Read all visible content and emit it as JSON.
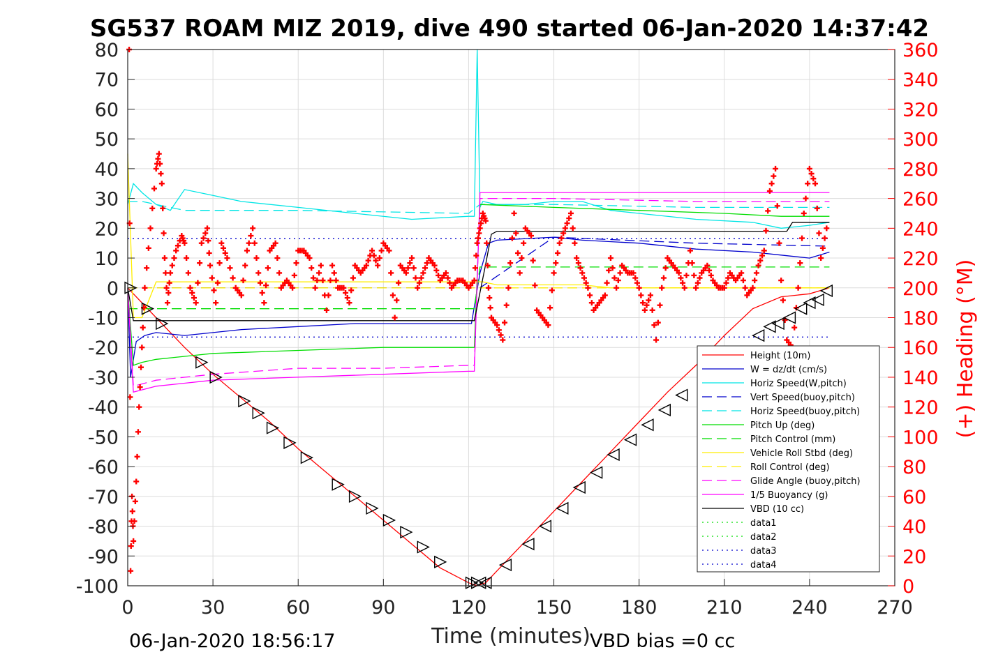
{
  "chart_data": {
    "type": "line",
    "title": "SG537 ROAM MIZ 2019, dive 490 started 06-Jan-2020 14:37:42",
    "xlabel": "Time (minutes)",
    "ylabel": "",
    "ylabel_right": "(+) Heading (°M)",
    "footer_left": "06-Jan-2020 18:56:17",
    "footer_right": "VBD bias =0 cc",
    "xlim": [
      0,
      270
    ],
    "ylim": [
      -100,
      80
    ],
    "ylim_right": [
      0,
      360
    ],
    "x_ticks": [
      "0",
      "30",
      "60",
      "90",
      "120",
      "150",
      "180",
      "210",
      "240",
      "270"
    ],
    "y_ticks": [
      "80",
      "70",
      "60",
      "50",
      "40",
      "30",
      "20",
      "10",
      "0",
      "-10",
      "-20",
      "-30",
      "-40",
      "-50",
      "-60",
      "-70",
      "-80",
      "-90",
      "-100"
    ],
    "y_ticks_right": [
      "360",
      "340",
      "320",
      "300",
      "280",
      "260",
      "240",
      "220",
      "200",
      "180",
      "160",
      "140",
      "120",
      "100",
      "80",
      "60",
      "40",
      "20",
      "0"
    ],
    "grid": true,
    "legend_position": "bottom-right",
    "series": [
      {
        "name": "Height (10m)",
        "color": "#ff0000",
        "dash": "solid",
        "x": [
          0,
          10,
          20,
          30,
          40,
          50,
          60,
          70,
          80,
          90,
          100,
          110,
          120,
          123,
          126,
          130,
          140,
          150,
          160,
          170,
          180,
          190,
          200,
          210,
          220,
          230,
          240,
          247
        ],
        "y": [
          0,
          -10,
          -20,
          -29,
          -37,
          -45,
          -54,
          -62,
          -70,
          -78,
          -86,
          -94,
          -99,
          -100,
          -99,
          -95,
          -85,
          -75,
          -65,
          -55,
          -45,
          -35,
          -26,
          -16,
          -7,
          -3,
          -2,
          0
        ]
      },
      {
        "name": "W = dz/dt (cm/s)",
        "color": "#0000cc",
        "dash": "solid",
        "x": [
          0,
          1,
          3,
          6,
          10,
          20,
          30,
          40,
          60,
          80,
          100,
          120,
          121,
          124,
          127,
          130,
          150,
          160,
          180,
          200,
          220,
          230,
          240,
          247
        ],
        "y": [
          0,
          -30,
          -18,
          -16,
          -15,
          -16,
          -15,
          -14,
          -13,
          -12,
          -12,
          -12,
          -12,
          5,
          15,
          16,
          17,
          16,
          15,
          13,
          12,
          11,
          10,
          12
        ]
      },
      {
        "name": "Horiz Speed(W,pitch)",
        "color": "#00e5e5",
        "dash": "solid",
        "x": [
          0,
          2,
          5,
          10,
          15,
          20,
          30,
          40,
          60,
          80,
          100,
          120,
          122,
          123,
          124,
          125,
          130,
          140,
          150,
          160,
          170,
          180,
          200,
          220,
          230,
          240,
          247
        ],
        "y": [
          28,
          35,
          32,
          28,
          26,
          33,
          31,
          29,
          27,
          25,
          23,
          24,
          24,
          80,
          27,
          29,
          28,
          28,
          29,
          29,
          26,
          25,
          23,
          22,
          20,
          21,
          22
        ]
      },
      {
        "name": "Vert Speed(buoy,pitch)",
        "color": "#0000cc",
        "dash": "dashed",
        "x": [
          0,
          122,
          124,
          150,
          200,
          247
        ],
        "y": [
          0,
          0,
          0,
          17,
          15,
          14
        ]
      },
      {
        "name": "Horiz Speed(buoy,pitch)",
        "color": "#00e5e5",
        "dash": "dashed",
        "x": [
          0,
          5,
          20,
          60,
          120,
          124,
          150,
          200,
          247
        ],
        "y": [
          29,
          29,
          26,
          26,
          25,
          28,
          28,
          27,
          27
        ]
      },
      {
        "name": "Pitch Up (deg)",
        "color": "#00dd00",
        "dash": "solid",
        "x": [
          0,
          2,
          5,
          10,
          30,
          60,
          90,
          120,
          122,
          124,
          150,
          180,
          210,
          230,
          247
        ],
        "y": [
          0,
          -26,
          -25,
          -24,
          -22,
          -21,
          -20,
          -20,
          -20,
          28,
          27,
          26,
          25,
          24,
          24
        ]
      },
      {
        "name": "Pitch Control (mm)",
        "color": "#00dd00",
        "dash": "dashed",
        "x": [
          0,
          122,
          124,
          247
        ],
        "y": [
          -7,
          -7,
          7,
          7
        ]
      },
      {
        "name": "Vehicle Roll Stbd (deg)",
        "color": "#ffee00",
        "dash": "solid",
        "x": [
          0,
          2,
          5,
          10,
          15,
          20,
          30,
          40,
          50,
          60,
          70,
          80,
          90,
          100,
          110,
          120,
          125,
          130,
          140,
          150,
          160,
          170,
          180,
          190,
          200,
          210,
          220,
          230,
          240,
          247
        ],
        "y": [
          45,
          -10,
          -10,
          2,
          2,
          2,
          2,
          2,
          2,
          2,
          2,
          2,
          2,
          2,
          2,
          2,
          2,
          1,
          1,
          1,
          1,
          0,
          0,
          0,
          0,
          0,
          0,
          0,
          0,
          0
        ]
      },
      {
        "name": "Roll Control (deg)",
        "color": "#ffee00",
        "dash": "dashed",
        "x": [
          0,
          247
        ],
        "y": [
          0,
          0
        ]
      },
      {
        "name": "Glide Angle (buoy,pitch)",
        "color": "#ff00ff",
        "dash": "dashed",
        "x": [
          0,
          2,
          10,
          30,
          60,
          90,
          120,
          122,
          124,
          150,
          200,
          247
        ],
        "y": [
          0,
          -33,
          -31,
          -29,
          -27,
          -27,
          -26,
          -26,
          30,
          30,
          29,
          29
        ]
      },
      {
        "name": "1/5 Buoyancy (g)",
        "color": "#ff00ff",
        "dash": "solid",
        "x": [
          0,
          2,
          10,
          30,
          60,
          90,
          120,
          122,
          124,
          150,
          200,
          247
        ],
        "y": [
          0,
          -35,
          -33,
          -31,
          -30,
          -29,
          -28,
          -28,
          32,
          32,
          32,
          32
        ]
      },
      {
        "name": "VBD (10 cc)",
        "color": "#000000",
        "dash": "solid",
        "x": [
          0,
          2,
          5,
          120,
          122,
          126,
          128,
          130,
          232,
          234,
          247
        ],
        "y": [
          0,
          -11,
          -11,
          -11,
          -11,
          8,
          18,
          19,
          19,
          22,
          22
        ]
      },
      {
        "name": "data1",
        "color": "#00dd00",
        "dash": "dotted",
        "x": [],
        "y": []
      },
      {
        "name": "data2",
        "color": "#00dd00",
        "dash": "dotted",
        "x": [],
        "y": []
      },
      {
        "name": "data3",
        "color": "#0000cc",
        "dash": "dotted",
        "x": [
          0,
          247
        ],
        "y": [
          16.5,
          16.5
        ]
      },
      {
        "name": "data4",
        "color": "#0000cc",
        "dash": "dotted",
        "x": [
          0,
          247
        ],
        "y": [
          -16.5,
          -16.5
        ]
      }
    ],
    "heading_series": {
      "color": "#ff0000",
      "marker": "+",
      "x": [
        0.5,
        1,
        1.5,
        2,
        3,
        4,
        5,
        6,
        8,
        10,
        11,
        12,
        13,
        14,
        15,
        17,
        19,
        20,
        22,
        24,
        26,
        28,
        29,
        31,
        33,
        35,
        38,
        40,
        42,
        44,
        46,
        48,
        50,
        52,
        54,
        56,
        58,
        60,
        62,
        64,
        66,
        68,
        70,
        72,
        74,
        76,
        78,
        80,
        82,
        84,
        86,
        88,
        90,
        92,
        94,
        96,
        98,
        100,
        102,
        104,
        106,
        108,
        110,
        112,
        114,
        116,
        118,
        120,
        122,
        123,
        124,
        125,
        126,
        127,
        128,
        130,
        132,
        134,
        136,
        138,
        140,
        142,
        144,
        146,
        148,
        150,
        152,
        154,
        156,
        158,
        160,
        162,
        164,
        166,
        168,
        170,
        172,
        174,
        176,
        178,
        180,
        182,
        184,
        186,
        188,
        190,
        192,
        194,
        196,
        198,
        200,
        202,
        204,
        206,
        208,
        210,
        212,
        214,
        216,
        218,
        220,
        222,
        224,
        226,
        228,
        230,
        232,
        234,
        236,
        238,
        240,
        242,
        244,
        246
      ],
      "y": [
        360,
        10,
        60,
        30,
        70,
        120,
        160,
        200,
        240,
        280,
        290,
        270,
        220,
        190,
        210,
        225,
        235,
        230,
        200,
        190,
        230,
        240,
        215,
        190,
        230,
        220,
        200,
        195,
        225,
        240,
        210,
        190,
        225,
        230,
        200,
        205,
        200,
        225,
        225,
        220,
        200,
        215,
        185,
        215,
        200,
        200,
        190,
        215,
        210,
        215,
        225,
        215,
        230,
        225,
        180,
        215,
        210,
        220,
        200,
        210,
        220,
        215,
        205,
        210,
        200,
        205,
        205,
        200,
        205,
        230,
        240,
        250,
        245,
        200,
        180,
        175,
        165,
        200,
        250,
        210,
        240,
        235,
        185,
        180,
        175,
        210,
        230,
        240,
        250,
        220,
        210,
        200,
        185,
        190,
        195,
        220,
        200,
        215,
        210,
        210,
        200,
        185,
        195,
        165,
        200,
        220,
        215,
        210,
        200,
        225,
        200,
        210,
        215,
        205,
        200,
        200,
        210,
        205,
        210,
        195,
        200,
        215,
        225,
        265,
        280,
        205,
        165,
        160,
        200,
        250,
        280,
        270,
        220,
        240
      ]
    },
    "markers_down": {
      "x": [
        1,
        7,
        12,
        26,
        31,
        41,
        46,
        51,
        57,
        63,
        74,
        80,
        86,
        92,
        98,
        104,
        110,
        121,
        123
      ],
      "y": [
        0,
        -7,
        -12,
        -25,
        -30,
        -38,
        -42,
        -47,
        -52,
        -57,
        -66,
        -70,
        -74,
        -78,
        -82,
        -87,
        -92,
        -99,
        -99
      ]
    },
    "markers_up": {
      "x": [
        124,
        126,
        133,
        141,
        147,
        153,
        159,
        165,
        171,
        177,
        183,
        189,
        195,
        222,
        226,
        229,
        233,
        237,
        240,
        243,
        246
      ],
      "y": [
        -99,
        -99,
        -93,
        -86,
        -80,
        -74,
        -67,
        -62,
        -56,
        -51,
        -46,
        -41,
        -36,
        -16,
        -13,
        -12,
        -10,
        -7,
        -5,
        -4,
        -1
      ]
    }
  }
}
